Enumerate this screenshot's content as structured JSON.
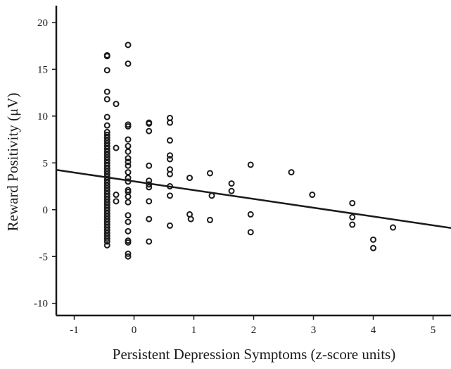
{
  "chart_data": {
    "type": "scatter",
    "title": "",
    "xlabel": "Persistent Depression Symptoms (z-score units)",
    "ylabel": "Reward Positivity (μV)",
    "xlim": [
      -1.3,
      5.3
    ],
    "ylim": [
      -11.3,
      21.8
    ],
    "x_ticks": [
      -1,
      0,
      1,
      2,
      3,
      4,
      5
    ],
    "y_ticks": [
      -10,
      -5,
      0,
      5,
      10,
      15,
      20
    ],
    "x_tick_labels": [
      "-1",
      "0",
      "1",
      "2",
      "3",
      "4",
      "5"
    ],
    "y_tick_labels": [
      "-10",
      "-5",
      "0",
      "5",
      "10",
      "15",
      "20"
    ],
    "grid": false,
    "legend": "none",
    "marker": "open-circle",
    "regression_line": {
      "x": [
        -1.3,
        5.3
      ],
      "y": [
        4.25,
        -1.95
      ]
    },
    "points": [
      [
        -0.45,
        16.5
      ],
      [
        -0.45,
        16.4
      ],
      [
        -0.45,
        14.9
      ],
      [
        -0.45,
        12.6
      ],
      [
        -0.45,
        11.8
      ],
      [
        -0.45,
        9.9
      ],
      [
        -0.45,
        9.0
      ],
      [
        -0.45,
        8.3
      ],
      [
        -0.45,
        8.0
      ],
      [
        -0.45,
        7.7
      ],
      [
        -0.45,
        7.4
      ],
      [
        -0.45,
        7.1
      ],
      [
        -0.45,
        6.8
      ],
      [
        -0.45,
        6.5
      ],
      [
        -0.45,
        6.2
      ],
      [
        -0.45,
        5.9
      ],
      [
        -0.45,
        5.6
      ],
      [
        -0.45,
        5.3
      ],
      [
        -0.45,
        5.0
      ],
      [
        -0.45,
        4.7
      ],
      [
        -0.45,
        4.4
      ],
      [
        -0.45,
        4.1
      ],
      [
        -0.45,
        3.8
      ],
      [
        -0.45,
        3.5
      ],
      [
        -0.45,
        3.2
      ],
      [
        -0.45,
        2.9
      ],
      [
        -0.45,
        2.6
      ],
      [
        -0.45,
        2.3
      ],
      [
        -0.45,
        2.0
      ],
      [
        -0.45,
        1.7
      ],
      [
        -0.45,
        1.4
      ],
      [
        -0.45,
        1.1
      ],
      [
        -0.45,
        0.8
      ],
      [
        -0.45,
        0.5
      ],
      [
        -0.45,
        0.2
      ],
      [
        -0.45,
        -0.1
      ],
      [
        -0.45,
        -0.4
      ],
      [
        -0.45,
        -0.7
      ],
      [
        -0.45,
        -1.0
      ],
      [
        -0.45,
        -1.3
      ],
      [
        -0.45,
        -1.6
      ],
      [
        -0.45,
        -1.9
      ],
      [
        -0.45,
        -2.2
      ],
      [
        -0.45,
        -2.5
      ],
      [
        -0.45,
        -2.8
      ],
      [
        -0.45,
        -3.1
      ],
      [
        -0.45,
        -3.4
      ],
      [
        -0.45,
        -3.8
      ],
      [
        -0.3,
        11.3
      ],
      [
        -0.3,
        6.6
      ],
      [
        -0.3,
        1.6
      ],
      [
        -0.3,
        0.9
      ],
      [
        -0.1,
        17.6
      ],
      [
        -0.1,
        15.6
      ],
      [
        -0.1,
        9.1
      ],
      [
        -0.1,
        8.9
      ],
      [
        -0.1,
        7.5
      ],
      [
        -0.1,
        6.8
      ],
      [
        -0.1,
        6.2
      ],
      [
        -0.1,
        5.5
      ],
      [
        -0.1,
        5.1
      ],
      [
        -0.1,
        4.7
      ],
      [
        -0.1,
        4.0
      ],
      [
        -0.1,
        3.4
      ],
      [
        -0.1,
        3.0
      ],
      [
        -0.1,
        2.1
      ],
      [
        -0.1,
        1.9
      ],
      [
        -0.1,
        1.4
      ],
      [
        -0.1,
        0.8
      ],
      [
        -0.1,
        -0.6
      ],
      [
        -0.1,
        -1.3
      ],
      [
        -0.1,
        -2.3
      ],
      [
        -0.1,
        -3.3
      ],
      [
        -0.1,
        -3.5
      ],
      [
        -0.1,
        -4.7
      ],
      [
        -0.1,
        -5.0
      ],
      [
        0.25,
        9.3
      ],
      [
        0.25,
        9.2
      ],
      [
        0.25,
        8.4
      ],
      [
        0.25,
        4.7
      ],
      [
        0.25,
        3.1
      ],
      [
        0.25,
        2.7
      ],
      [
        0.25,
        2.4
      ],
      [
        0.25,
        0.9
      ],
      [
        0.25,
        -1.0
      ],
      [
        0.25,
        -3.4
      ],
      [
        0.6,
        9.8
      ],
      [
        0.6,
        9.3
      ],
      [
        0.6,
        7.4
      ],
      [
        0.6,
        5.8
      ],
      [
        0.6,
        5.4
      ],
      [
        0.6,
        4.3
      ],
      [
        0.6,
        3.8
      ],
      [
        0.6,
        2.5
      ],
      [
        0.6,
        1.5
      ],
      [
        0.6,
        -1.7
      ],
      [
        0.93,
        3.4
      ],
      [
        0.93,
        -0.5
      ],
      [
        0.95,
        -1.0
      ],
      [
        1.27,
        3.9
      ],
      [
        1.3,
        1.5
      ],
      [
        1.27,
        -1.1
      ],
      [
        1.63,
        2.8
      ],
      [
        1.63,
        2.0
      ],
      [
        1.95,
        4.8
      ],
      [
        1.95,
        -0.5
      ],
      [
        1.95,
        -2.4
      ],
      [
        2.63,
        4.0
      ],
      [
        2.98,
        1.6
      ],
      [
        3.65,
        0.7
      ],
      [
        3.65,
        -0.8
      ],
      [
        3.65,
        -1.6
      ],
      [
        4.0,
        -3.2
      ],
      [
        4.0,
        -4.1
      ],
      [
        4.33,
        -1.9
      ]
    ]
  }
}
